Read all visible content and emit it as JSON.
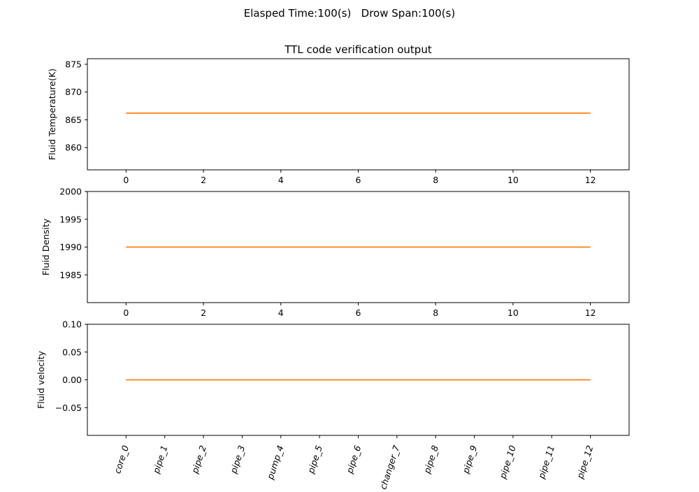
{
  "figure": {
    "suptitle": "Elasped Time:100(s)   Drow Span:100(s)",
    "line_color": "#ff7f0e"
  },
  "chart_data": [
    {
      "type": "line",
      "title": "TTL code verification output",
      "xlabel": "",
      "ylabel": "Fluid Temperature(K)",
      "x": [
        0,
        1,
        2,
        3,
        4,
        5,
        6,
        7,
        8,
        9,
        10,
        11,
        12
      ],
      "y": [
        866.2,
        866.2,
        866.2,
        866.2,
        866.2,
        866.2,
        866.2,
        866.2,
        866.2,
        866.2,
        866.2,
        866.2,
        866.2
      ],
      "xlim": [
        -1,
        13
      ],
      "ylim": [
        856,
        876
      ],
      "xticks": [
        0,
        2,
        4,
        6,
        8,
        10,
        12
      ],
      "yticks": [
        860,
        865,
        870,
        875
      ],
      "grid": false
    },
    {
      "type": "line",
      "title": "",
      "xlabel": "",
      "ylabel": "Fluid Density",
      "x": [
        0,
        1,
        2,
        3,
        4,
        5,
        6,
        7,
        8,
        9,
        10,
        11,
        12
      ],
      "y": [
        1990,
        1990,
        1990,
        1990,
        1990,
        1990,
        1990,
        1990,
        1990,
        1990,
        1990,
        1990,
        1990
      ],
      "xlim": [
        -1,
        13
      ],
      "ylim": [
        1980,
        2000
      ],
      "xticks": [
        0,
        2,
        4,
        6,
        8,
        10,
        12
      ],
      "yticks": [
        1985,
        1990,
        1995,
        2000
      ],
      "grid": false
    },
    {
      "type": "line",
      "title": "",
      "xlabel": "",
      "ylabel": "Fluid velocity",
      "x": [
        0,
        1,
        2,
        3,
        4,
        5,
        6,
        7,
        8,
        9,
        10,
        11,
        12
      ],
      "y": [
        0,
        0,
        0,
        0,
        0,
        0,
        0,
        0,
        0,
        0,
        0,
        0,
        0
      ],
      "xlim": [
        -1,
        13
      ],
      "ylim": [
        -0.1,
        0.1
      ],
      "xticks": [
        0,
        1,
        2,
        3,
        4,
        5,
        6,
        7,
        8,
        9,
        10,
        11,
        12
      ],
      "xticklabels": [
        "core_0",
        "pipe_1",
        "pipe_2",
        "pipe_3",
        "pump_4",
        "pipe_5",
        "pipe_6",
        "changer_7",
        "pipe_8",
        "pipe_9",
        "pipe_10",
        "pipe_11",
        "pipe_12"
      ],
      "yticks": [
        -0.05,
        0.0,
        0.05,
        0.1
      ],
      "yticklabels": [
        "−0.05",
        "0.00",
        "0.05",
        "0.10"
      ],
      "grid": false
    }
  ]
}
